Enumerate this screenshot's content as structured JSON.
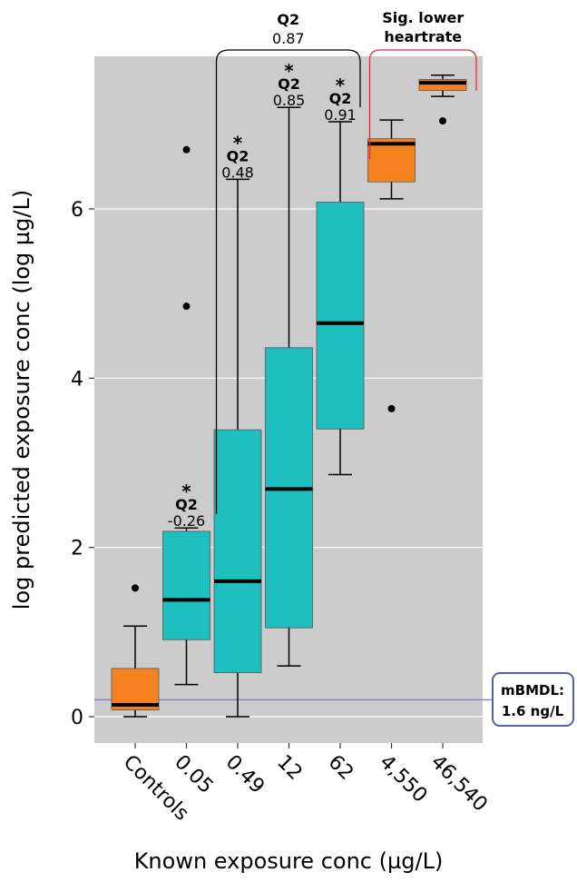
{
  "chart_data": {
    "type": "box",
    "xlabel": "Known exposure conc (µg/L)",
    "ylabel": "log predicted exposure conc (log µg/L)",
    "ylim": [
      -0.3,
      7.8
    ],
    "yticks": [
      0,
      2,
      4,
      6
    ],
    "grid": true,
    "colors": {
      "panel": "#cccccc",
      "grid": "#ffffff",
      "control": "#f5821f",
      "exposed": "#1fbfbf",
      "sig_bracket": "#e8282b",
      "q2_bracket": "#000000",
      "mbmdl_line": "#7b7bc8",
      "mbmdl_box": "#5b5bb0"
    },
    "categories": [
      "Controls",
      "0.05",
      "0.49",
      "12",
      "62",
      "4,550",
      "46,540"
    ],
    "boxes": [
      {
        "category": "Controls",
        "whisker_low": 0.0,
        "q1": 0.08,
        "median": 0.14,
        "q3": 0.57,
        "whisker_high": 1.07,
        "outliers": [
          1.52
        ],
        "group": "control"
      },
      {
        "category": "0.05",
        "whisker_low": 0.38,
        "q1": 0.91,
        "median": 1.38,
        "q3": 2.19,
        "whisker_high": 2.23,
        "outliers": [
          4.85,
          6.7
        ],
        "group": "exposed"
      },
      {
        "category": "0.49",
        "whisker_low": 0.0,
        "q1": 0.52,
        "median": 1.6,
        "q3": 3.39,
        "whisker_high": 6.35,
        "outliers": [],
        "group": "exposed"
      },
      {
        "category": "12",
        "whisker_low": 0.6,
        "q1": 1.05,
        "median": 2.69,
        "q3": 4.36,
        "whisker_high": 7.2,
        "outliers": [],
        "group": "exposed"
      },
      {
        "category": "62",
        "whisker_low": 2.86,
        "q1": 3.4,
        "median": 4.65,
        "q3": 6.08,
        "whisker_high": 7.03,
        "outliers": [],
        "group": "exposed"
      },
      {
        "category": "4,550",
        "whisker_low": 6.12,
        "q1": 6.32,
        "median": 6.77,
        "q3": 6.83,
        "whisker_high": 7.05,
        "outliers": [
          3.64
        ],
        "group": "control"
      },
      {
        "category": "46,540",
        "whisker_low": 7.33,
        "q1": 7.4,
        "median": 7.49,
        "q3": 7.53,
        "whisker_high": 7.58,
        "outliers": [
          7.04
        ],
        "group": "control"
      }
    ],
    "box_annotations": [
      {
        "category": "0.05",
        "star": "*",
        "label": "Q2",
        "value": "-0.26"
      },
      {
        "category": "0.49",
        "star": "*",
        "label": "Q2",
        "value": "0.48"
      },
      {
        "category": "12",
        "star": "*",
        "label": "Q2",
        "value": "0.85"
      },
      {
        "category": "62",
        "star": "*",
        "label": "Q2",
        "value": "0.91"
      }
    ],
    "bracket_q2": {
      "from": "0.05",
      "to": "62",
      "label": "Q2",
      "value": "0.87"
    },
    "bracket_sig": {
      "from": "4,550",
      "to": "46,540",
      "label_line1": "Sig. lower",
      "label_line2": "heartrate"
    },
    "reference_line": {
      "y": 0.2,
      "label_line1": "mBMDL:",
      "label_line2": "1.6 ng/L"
    }
  }
}
